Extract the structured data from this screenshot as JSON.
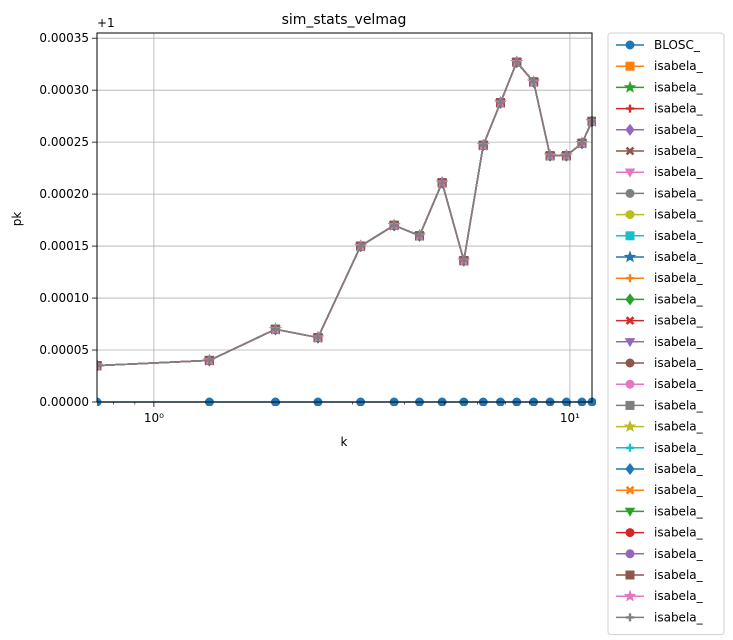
{
  "chart_data": {
    "type": "line",
    "title": "sim_stats_velmag",
    "xlabel": "k",
    "ylabel": "pk",
    "x_scale": "log",
    "xlim": [
      0.73,
      11.3
    ],
    "ylim": [
      0.0,
      0.000355
    ],
    "y_offset_label": "+1",
    "grid": true,
    "legend_position": "outside-right",
    "x_tick_labels": [
      {
        "value": 1,
        "label": "10⁰"
      },
      {
        "value": 10,
        "label": "10¹"
      }
    ],
    "y_ticks": [
      0.0,
      5e-05,
      0.0001,
      0.00015,
      0.0002,
      0.00025,
      0.0003,
      0.00035
    ],
    "y_tick_labels": [
      "0.00000",
      "0.00005",
      "0.00010",
      "0.00015",
      "0.00020",
      "0.00025",
      "0.00030",
      "0.00035"
    ],
    "x": [
      0.73,
      1.36,
      1.96,
      2.48,
      3.14,
      3.78,
      4.35,
      4.93,
      5.56,
      6.19,
      6.81,
      7.45,
      8.18,
      8.96,
      9.81,
      10.69,
      11.3
    ],
    "series": [
      {
        "name": "BLOSC_",
        "color": "#1f77b4",
        "marker": "circle",
        "values": [
          0,
          0,
          0,
          0,
          0,
          0,
          0,
          0,
          0,
          0,
          0,
          0,
          0,
          0,
          0,
          0,
          0
        ]
      },
      {
        "name": "isabela_",
        "color": "#ff7f0e",
        "marker": "square",
        "values": [
          3.5e-05,
          4e-05,
          7e-05,
          6.2e-05,
          0.00015,
          0.00017,
          0.00016,
          0.000211,
          0.000136,
          0.000247,
          0.000288,
          0.000327,
          0.000308,
          0.000237,
          0.000237,
          0.000249,
          0.00027
        ]
      },
      {
        "name": "isabela_",
        "color": "#2ca02c",
        "marker": "star",
        "values": [
          3.5e-05,
          4e-05,
          7e-05,
          6.2e-05,
          0.00015,
          0.00017,
          0.00016,
          0.000211,
          0.000136,
          0.000247,
          0.000288,
          0.000327,
          0.000308,
          0.000237,
          0.000237,
          0.000249,
          0.00027
        ]
      },
      {
        "name": "isabela_",
        "color": "#d62728",
        "marker": "plus",
        "values": [
          3.5e-05,
          4e-05,
          7e-05,
          6.2e-05,
          0.00015,
          0.00017,
          0.00016,
          0.000211,
          0.000136,
          0.000247,
          0.000288,
          0.000327,
          0.000308,
          0.000237,
          0.000237,
          0.000249,
          0.00027
        ]
      },
      {
        "name": "isabela_",
        "color": "#9467bd",
        "marker": "diamond",
        "values": [
          3.5e-05,
          4e-05,
          7e-05,
          6.2e-05,
          0.00015,
          0.00017,
          0.00016,
          0.000211,
          0.000136,
          0.000247,
          0.000288,
          0.000327,
          0.000308,
          0.000237,
          0.000237,
          0.000249,
          0.00027
        ]
      },
      {
        "name": "isabela_",
        "color": "#8c564b",
        "marker": "x",
        "values": [
          3.5e-05,
          4e-05,
          7e-05,
          6.2e-05,
          0.00015,
          0.00017,
          0.00016,
          0.000211,
          0.000136,
          0.000247,
          0.000288,
          0.000327,
          0.000308,
          0.000237,
          0.000237,
          0.000249,
          0.00027
        ]
      },
      {
        "name": "isabela_",
        "color": "#e377c2",
        "marker": "triangle-down",
        "values": [
          3.5e-05,
          4e-05,
          7e-05,
          6.2e-05,
          0.00015,
          0.00017,
          0.00016,
          0.000211,
          0.000136,
          0.000247,
          0.000288,
          0.000327,
          0.000308,
          0.000237,
          0.000237,
          0.000249,
          0.00027
        ]
      },
      {
        "name": "isabela_",
        "color": "#7f7f7f",
        "marker": "circle",
        "values": [
          3.5e-05,
          4e-05,
          7e-05,
          6.2e-05,
          0.00015,
          0.00017,
          0.00016,
          0.000211,
          0.000136,
          0.000247,
          0.000288,
          0.000327,
          0.000308,
          0.000237,
          0.000237,
          0.000249,
          0.00027
        ]
      },
      {
        "name": "isabela_",
        "color": "#bcbd22",
        "marker": "circle",
        "values": [
          3.5e-05,
          4e-05,
          7e-05,
          6.2e-05,
          0.00015,
          0.00017,
          0.00016,
          0.000211,
          0.000136,
          0.000247,
          0.000288,
          0.000327,
          0.000308,
          0.000237,
          0.000237,
          0.000249,
          0.00027
        ]
      },
      {
        "name": "isabela_",
        "color": "#17becf",
        "marker": "square",
        "values": [
          3.5e-05,
          4e-05,
          7e-05,
          6.2e-05,
          0.00015,
          0.00017,
          0.00016,
          0.000211,
          0.000136,
          0.000247,
          0.000288,
          0.000327,
          0.000308,
          0.000237,
          0.000237,
          0.000249,
          0.00027
        ]
      },
      {
        "name": "isabela_",
        "color": "#1f77b4",
        "marker": "star",
        "values": [
          3.5e-05,
          4e-05,
          7e-05,
          6.2e-05,
          0.00015,
          0.00017,
          0.00016,
          0.000211,
          0.000136,
          0.000247,
          0.000288,
          0.000327,
          0.000308,
          0.000237,
          0.000237,
          0.000249,
          0.00027
        ]
      },
      {
        "name": "isabela_",
        "color": "#ff7f0e",
        "marker": "plus",
        "values": [
          3.5e-05,
          4e-05,
          7e-05,
          6.2e-05,
          0.00015,
          0.00017,
          0.00016,
          0.000211,
          0.000136,
          0.000247,
          0.000288,
          0.000327,
          0.000308,
          0.000237,
          0.000237,
          0.000249,
          0.00027
        ]
      },
      {
        "name": "isabela_",
        "color": "#2ca02c",
        "marker": "diamond",
        "values": [
          3.5e-05,
          4e-05,
          7e-05,
          6.2e-05,
          0.00015,
          0.00017,
          0.00016,
          0.000211,
          0.000136,
          0.000247,
          0.000288,
          0.000327,
          0.000308,
          0.000237,
          0.000237,
          0.000249,
          0.00027
        ]
      },
      {
        "name": "isabela_",
        "color": "#d62728",
        "marker": "x",
        "values": [
          3.5e-05,
          4e-05,
          7e-05,
          6.2e-05,
          0.00015,
          0.00017,
          0.00016,
          0.000211,
          0.000136,
          0.000247,
          0.000288,
          0.000327,
          0.000308,
          0.000237,
          0.000237,
          0.000249,
          0.00027
        ]
      },
      {
        "name": "isabela_",
        "color": "#9467bd",
        "marker": "triangle-down",
        "values": [
          3.5e-05,
          4e-05,
          7e-05,
          6.2e-05,
          0.00015,
          0.00017,
          0.00016,
          0.000211,
          0.000136,
          0.000247,
          0.000288,
          0.000327,
          0.000308,
          0.000237,
          0.000237,
          0.000249,
          0.00027
        ]
      },
      {
        "name": "isabela_",
        "color": "#8c564b",
        "marker": "circle",
        "values": [
          3.5e-05,
          4e-05,
          7e-05,
          6.2e-05,
          0.00015,
          0.00017,
          0.00016,
          0.000211,
          0.000136,
          0.000247,
          0.000288,
          0.000327,
          0.000308,
          0.000237,
          0.000237,
          0.000249,
          0.00027
        ]
      },
      {
        "name": "isabela_",
        "color": "#e377c2",
        "marker": "circle",
        "values": [
          3.5e-05,
          4e-05,
          7e-05,
          6.2e-05,
          0.00015,
          0.00017,
          0.00016,
          0.000211,
          0.000136,
          0.000247,
          0.000288,
          0.000327,
          0.000308,
          0.000237,
          0.000237,
          0.000249,
          0.00027
        ]
      },
      {
        "name": "isabela_",
        "color": "#7f7f7f",
        "marker": "square",
        "values": [
          3.5e-05,
          4e-05,
          7e-05,
          6.2e-05,
          0.00015,
          0.00017,
          0.00016,
          0.000211,
          0.000136,
          0.000247,
          0.000288,
          0.000327,
          0.000308,
          0.000237,
          0.000237,
          0.000249,
          0.00027
        ]
      },
      {
        "name": "isabela_",
        "color": "#bcbd22",
        "marker": "star",
        "values": [
          3.5e-05,
          4e-05,
          7e-05,
          6.2e-05,
          0.00015,
          0.00017,
          0.00016,
          0.000211,
          0.000136,
          0.000247,
          0.000288,
          0.000327,
          0.000308,
          0.000237,
          0.000237,
          0.000249,
          0.00027
        ]
      },
      {
        "name": "isabela_",
        "color": "#17becf",
        "marker": "plus",
        "values": [
          3.5e-05,
          4e-05,
          7e-05,
          6.2e-05,
          0.00015,
          0.00017,
          0.00016,
          0.000211,
          0.000136,
          0.000247,
          0.000288,
          0.000327,
          0.000308,
          0.000237,
          0.000237,
          0.000249,
          0.00027
        ]
      },
      {
        "name": "isabela_",
        "color": "#1f77b4",
        "marker": "diamond",
        "values": [
          3.5e-05,
          4e-05,
          7e-05,
          6.2e-05,
          0.00015,
          0.00017,
          0.00016,
          0.000211,
          0.000136,
          0.000247,
          0.000288,
          0.000327,
          0.000308,
          0.000237,
          0.000237,
          0.000249,
          0.00027
        ]
      },
      {
        "name": "isabela_",
        "color": "#ff7f0e",
        "marker": "x",
        "values": [
          3.5e-05,
          4e-05,
          7e-05,
          6.2e-05,
          0.00015,
          0.00017,
          0.00016,
          0.000211,
          0.000136,
          0.000247,
          0.000288,
          0.000327,
          0.000308,
          0.000237,
          0.000237,
          0.000249,
          0.00027
        ]
      },
      {
        "name": "isabela_",
        "color": "#2ca02c",
        "marker": "triangle-down",
        "values": [
          3.5e-05,
          4e-05,
          7e-05,
          6.2e-05,
          0.00015,
          0.00017,
          0.00016,
          0.000211,
          0.000136,
          0.000247,
          0.000288,
          0.000327,
          0.000308,
          0.000237,
          0.000237,
          0.000249,
          0.00027
        ]
      },
      {
        "name": "isabela_",
        "color": "#d62728",
        "marker": "circle",
        "values": [
          3.5e-05,
          4e-05,
          7e-05,
          6.2e-05,
          0.00015,
          0.00017,
          0.00016,
          0.000211,
          0.000136,
          0.000247,
          0.000288,
          0.000327,
          0.000308,
          0.000237,
          0.000237,
          0.000249,
          0.00027
        ]
      },
      {
        "name": "isabela_",
        "color": "#9467bd",
        "marker": "circle",
        "values": [
          3.5e-05,
          4e-05,
          7e-05,
          6.2e-05,
          0.00015,
          0.00017,
          0.00016,
          0.000211,
          0.000136,
          0.000247,
          0.000288,
          0.000327,
          0.000308,
          0.000237,
          0.000237,
          0.000249,
          0.00027
        ]
      },
      {
        "name": "isabela_",
        "color": "#8c564b",
        "marker": "square",
        "values": [
          3.5e-05,
          4e-05,
          7e-05,
          6.2e-05,
          0.00015,
          0.00017,
          0.00016,
          0.000211,
          0.000136,
          0.000247,
          0.000288,
          0.000327,
          0.000308,
          0.000237,
          0.000237,
          0.000249,
          0.00027
        ]
      },
      {
        "name": "isabela_",
        "color": "#e377c2",
        "marker": "star",
        "values": [
          3.5e-05,
          4e-05,
          7e-05,
          6.2e-05,
          0.00015,
          0.00017,
          0.00016,
          0.000211,
          0.000136,
          0.000247,
          0.000288,
          0.000327,
          0.000308,
          0.000237,
          0.000237,
          0.000249,
          0.00027
        ]
      },
      {
        "name": "isabela_",
        "color": "#7f7f7f",
        "marker": "plus",
        "values": [
          3.5e-05,
          4e-05,
          7e-05,
          6.2e-05,
          0.00015,
          0.00017,
          0.00016,
          0.000211,
          0.000136,
          0.000247,
          0.000288,
          0.000327,
          0.000308,
          0.000237,
          0.000237,
          0.000249,
          0.00027
        ]
      }
    ]
  }
}
